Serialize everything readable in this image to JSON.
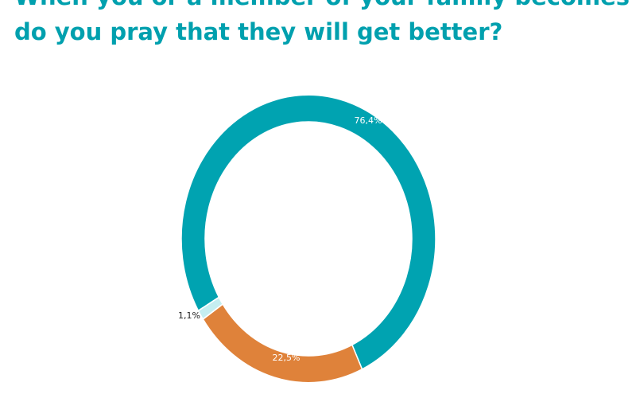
{
  "chart_data": {
    "type": "donut",
    "title_lines": [
      "When you or a member of your family becomes ill,",
      "do you pray that they will get better?"
    ],
    "values": [
      76.4,
      22.5,
      1.1
    ],
    "value_labels": [
      "76,4%",
      "22,5%",
      "1,1%"
    ],
    "colors": [
      "#00a3b1",
      "#df823a",
      "#c5eef0"
    ]
  }
}
